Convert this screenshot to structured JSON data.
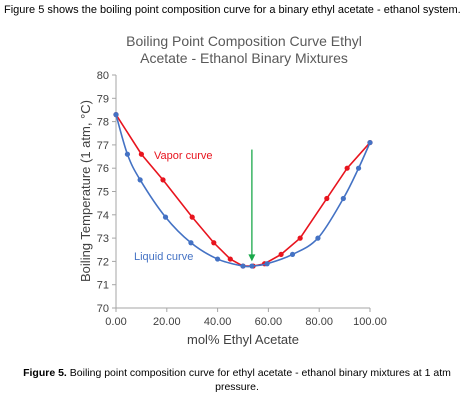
{
  "intro_text": "Figure 5 shows the boiling point composition curve for a binary ethyl acetate - ethanol system.",
  "caption": {
    "label": "Figure 5.",
    "text": "Boiling point composition curve for ethyl acetate - ethanol binary mixtures at 1 atm pressure."
  },
  "chart_data": {
    "type": "line",
    "title_lines": [
      "Boiling Point Composition Curve Ethyl",
      "Acetate - Ethanol Binary Mixtures"
    ],
    "xlabel": "mol% Ethyl Acetate",
    "ylabel": "Boiling Temperature (1 atm, °C)",
    "xlim": [
      0,
      100
    ],
    "ylim": [
      70,
      80
    ],
    "x_ticks": [
      "0.00",
      "20.00",
      "40.00",
      "60.00",
      "80.00",
      "100.00"
    ],
    "y_ticks": [
      "70",
      "71",
      "72",
      "73",
      "74",
      "75",
      "76",
      "77",
      "78",
      "79",
      "80"
    ],
    "grid": false,
    "series": [
      {
        "name": "Vapor curve",
        "color": "#e8141e",
        "points": [
          [
            0,
            78.3
          ],
          [
            10,
            76.6
          ],
          [
            18.5,
            75.5
          ],
          [
            30,
            73.9
          ],
          [
            38.5,
            72.8
          ],
          [
            45,
            72.1
          ],
          [
            50,
            71.8
          ],
          [
            54,
            71.8
          ],
          [
            58.5,
            71.9
          ],
          [
            65,
            72.3
          ],
          [
            72.5,
            73.0
          ],
          [
            83,
            74.7
          ],
          [
            91,
            76.0
          ],
          [
            100,
            77.1
          ]
        ]
      },
      {
        "name": "Liquid curve",
        "color": "#4472c4",
        "points": [
          [
            0,
            78.3
          ],
          [
            4.5,
            76.6
          ],
          [
            9.5,
            75.5
          ],
          [
            19.5,
            73.9
          ],
          [
            29.5,
            72.8
          ],
          [
            40,
            72.1
          ],
          [
            50,
            71.8
          ],
          [
            53.5,
            71.8
          ],
          [
            59.5,
            71.9
          ],
          [
            69.5,
            72.3
          ],
          [
            79.5,
            73.0
          ],
          [
            89.5,
            74.7
          ],
          [
            95.5,
            76.0
          ],
          [
            100,
            77.1
          ]
        ]
      }
    ],
    "annotation": {
      "type": "arrow",
      "color": "#1aa84a",
      "x": 53.5,
      "y_from": 76.8,
      "y_to": 72.0
    }
  }
}
